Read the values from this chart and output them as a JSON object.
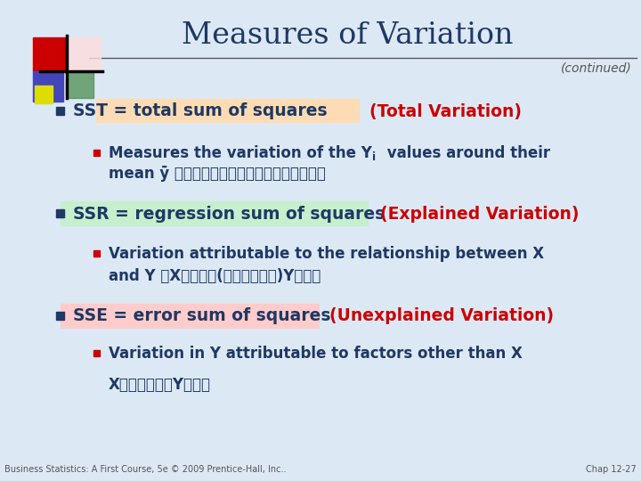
{
  "title": "Measures of Variation",
  "subtitle": "(continued)",
  "bg_color": "#dce9f5",
  "title_color": "#1F3864",
  "subtitle_color": "#555555",
  "bullet_color": "#1F3864",
  "red_color": "#CC0000",
  "highlight_peach": "#FDDCB5",
  "highlight_green": "#C6EFCE",
  "highlight_pink": "#FFCCCC",
  "footer_left": "Business Statistics: A First Course, 5e © 2009 Prentice-Hall, Inc..",
  "footer_right": "Chap 12-27",
  "line_color": "#555555",
  "corner_red": "#CC0000",
  "corner_pink": "#FF9999",
  "corner_blue": "#4444BB",
  "corner_green": "#448844",
  "corner_yellow": "#DDDD00"
}
